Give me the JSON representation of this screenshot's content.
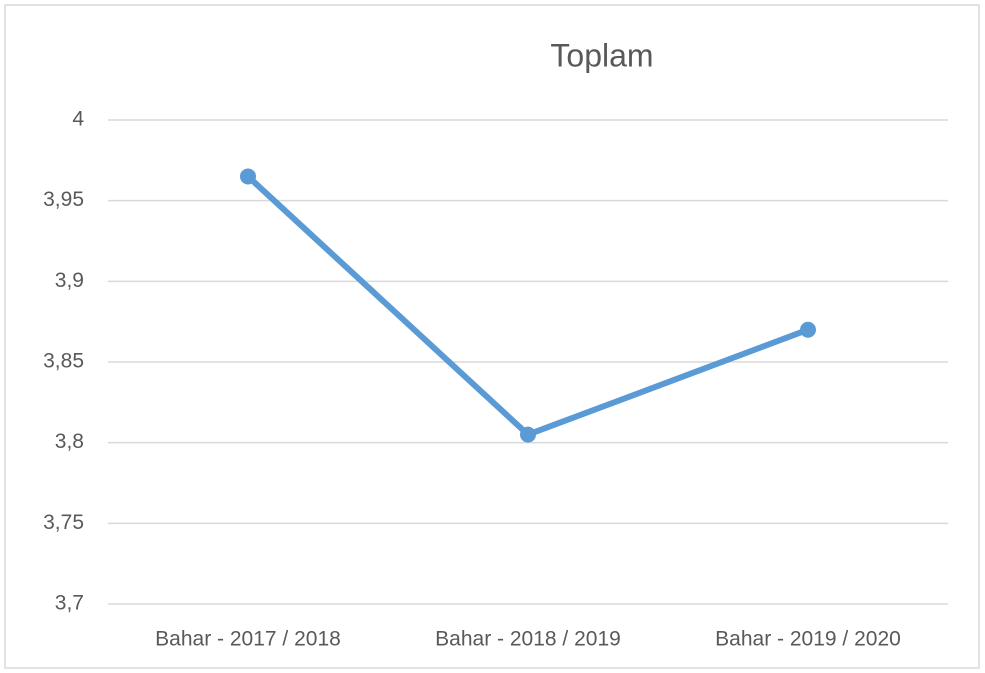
{
  "chart_data": {
    "type": "line",
    "title": "Toplam",
    "categories": [
      "Bahar - 2017 / 2018",
      "Bahar - 2018 / 2019",
      "Bahar - 2019 / 2020"
    ],
    "series": [
      {
        "name": "Toplam",
        "color": "#5b9bd5",
        "values": [
          3.965,
          3.805,
          3.87
        ]
      }
    ],
    "ylim": [
      3.7,
      4
    ],
    "yticks": [
      {
        "value": 3.7,
        "label": "3,7"
      },
      {
        "value": 3.75,
        "label": "3,75"
      },
      {
        "value": 3.8,
        "label": "3,8"
      },
      {
        "value": 3.85,
        "label": "3,85"
      },
      {
        "value": 3.9,
        "label": "3,9"
      },
      {
        "value": 3.95,
        "label": "3,95"
      },
      4
    ],
    "grid": true
  }
}
